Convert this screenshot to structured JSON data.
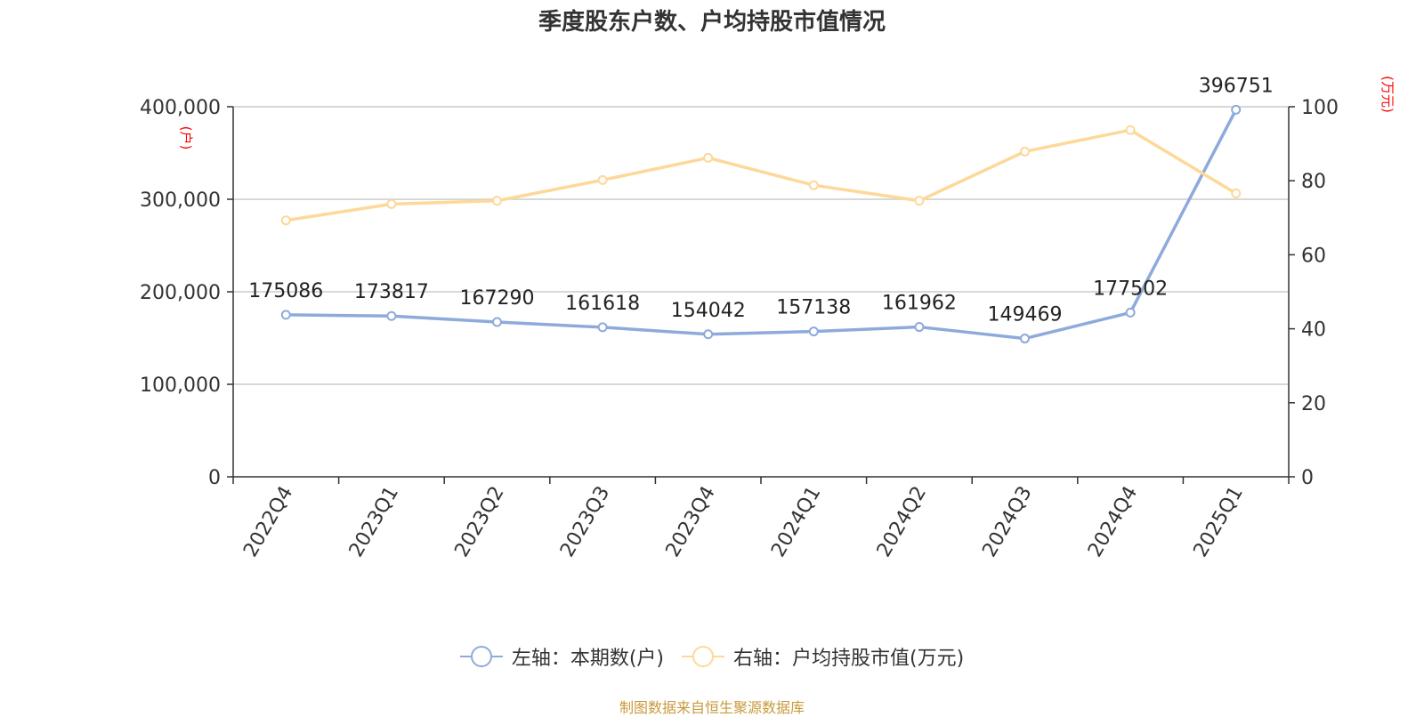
{
  "chart_data": {
    "type": "line",
    "title": "季度股东户数、户均持股市值情况",
    "categories": [
      "2022Q4",
      "2023Q1",
      "2023Q2",
      "2023Q3",
      "2023Q4",
      "2024Q1",
      "2024Q2",
      "2024Q3",
      "2024Q4",
      "2025Q1"
    ],
    "series": [
      {
        "name": "左轴：本期数(户)",
        "axis": "left",
        "color": "#8eaadb",
        "values": [
          175086,
          173817,
          167290,
          161618,
          154042,
          157138,
          161962,
          149469,
          177502,
          396751
        ],
        "show_labels": true
      },
      {
        "name": "右轴：户均持股市值(万元)",
        "axis": "right",
        "color": "#fdd899",
        "values": [
          69.3,
          73.7,
          74.6,
          80.2,
          86.2,
          78.8,
          74.6,
          87.9,
          93.7,
          76.6
        ],
        "show_labels": false
      }
    ],
    "left_axis": {
      "unit_label": "(户)",
      "min": 0,
      "max": 400000,
      "ticks": [
        0,
        100000,
        200000,
        300000,
        400000
      ],
      "tick_labels": [
        "0",
        "100,000",
        "200,000",
        "300,000",
        "400,000"
      ]
    },
    "right_axis": {
      "unit_label": "(万元)",
      "min": 0,
      "max": 100,
      "ticks": [
        0,
        20,
        40,
        60,
        80,
        100
      ],
      "tick_labels": [
        "0",
        "20",
        "40",
        "60",
        "80",
        "100"
      ]
    },
    "grid": true,
    "legend_position": "bottom-center"
  },
  "source_note": "制图数据来自恒生聚源数据库",
  "colors": {
    "axis_unit": "#ff0000",
    "grid": "#cccccc",
    "axis": "#333333",
    "text": "#333333"
  }
}
